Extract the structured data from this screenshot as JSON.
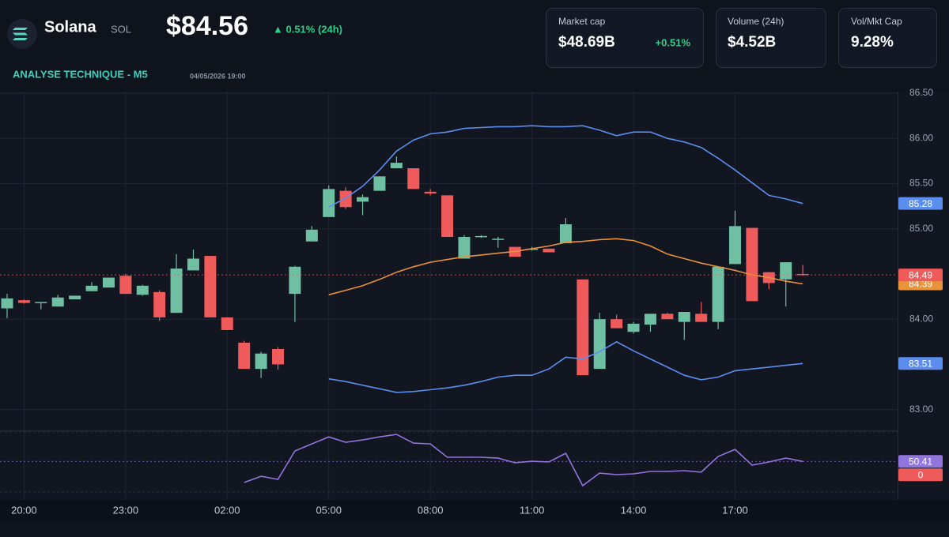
{
  "header": {
    "name": "Solana",
    "symbol": "SOL",
    "price": "$84.56",
    "change": "▲ 0.51% (24h)"
  },
  "cards": [
    {
      "label": "Market cap",
      "value": "$48.69B",
      "change": "+0.51%"
    },
    {
      "label": "Volume (24h)",
      "value": "$4.52B"
    },
    {
      "label": "Vol/Mkt Cap",
      "value": "9.28%"
    }
  ],
  "section": {
    "title": "ANALYSE TECHNIQUE - M5",
    "timestamp": "04/05/2026 19:00"
  },
  "chart_data": {
    "type": "candlestick",
    "up_color": "#6fbfa2",
    "down_color": "#ef5a5a",
    "xlim": [
      -0.42,
      52.6
    ],
    "xticks": [
      {
        "value": 1,
        "label": "20:00"
      },
      {
        "value": 7,
        "label": "23:00"
      },
      {
        "value": 13,
        "label": "02:00"
      },
      {
        "value": 19,
        "label": "05:00"
      },
      {
        "value": 25,
        "label": "08:00"
      },
      {
        "value": 31,
        "label": "11:00"
      },
      {
        "value": 37,
        "label": "14:00"
      },
      {
        "value": 43,
        "label": "17:00"
      }
    ],
    "ylim": [
      82.77,
      86.5
    ],
    "yticks": [
      {
        "value": 83,
        "label": "83.00"
      },
      {
        "value": 84,
        "label": "84.00"
      },
      {
        "value": 85,
        "label": "85.00"
      },
      {
        "value": 85.5,
        "label": "85.50"
      },
      {
        "value": 86,
        "label": "86.00"
      },
      {
        "value": 86.5,
        "label": "86.50"
      }
    ],
    "grid": true,
    "candles": [
      {
        "open": 84.12,
        "high": 84.28,
        "low": 84.01,
        "close": 84.23
      },
      {
        "open": 84.21,
        "high": 84.22,
        "low": 84.17,
        "close": 84.18
      },
      {
        "open": 84.18,
        "high": 84.19,
        "low": 84.11,
        "close": 84.19
      },
      {
        "open": 84.14,
        "high": 84.27,
        "low": 84.14,
        "close": 84.24
      },
      {
        "open": 84.22,
        "high": 84.26,
        "low": 84.22,
        "close": 84.26
      },
      {
        "open": 84.31,
        "high": 84.41,
        "low": 84.31,
        "close": 84.37
      },
      {
        "open": 84.35,
        "high": 84.46,
        "low": 84.35,
        "close": 84.46
      },
      {
        "open": 84.48,
        "high": 84.5,
        "low": 84.28,
        "close": 84.28
      },
      {
        "open": 84.27,
        "high": 84.38,
        "low": 84.26,
        "close": 84.37
      },
      {
        "open": 84.3,
        "high": 84.32,
        "low": 83.98,
        "close": 84.02
      },
      {
        "open": 84.07,
        "high": 84.72,
        "low": 84.07,
        "close": 84.56
      },
      {
        "open": 84.54,
        "high": 84.77,
        "low": 84.54,
        "close": 84.67
      },
      {
        "open": 84.7,
        "high": 84.7,
        "low": 84.02,
        "close": 84.02
      },
      {
        "open": 84.02,
        "high": 84.02,
        "low": 83.88,
        "close": 83.88
      },
      {
        "open": 83.74,
        "high": 83.76,
        "low": 83.45,
        "close": 83.45
      },
      {
        "open": 83.45,
        "high": 83.64,
        "low": 83.35,
        "close": 83.62
      },
      {
        "open": 83.67,
        "high": 83.69,
        "low": 83.44,
        "close": 83.5
      },
      {
        "open": 84.28,
        "high": 84.59,
        "low": 83.97,
        "close": 84.58
      },
      {
        "open": 84.86,
        "high": 85.03,
        "low": 84.86,
        "close": 84.99
      },
      {
        "open": 85.13,
        "high": 85.48,
        "low": 85.13,
        "close": 85.44
      },
      {
        "open": 85.42,
        "high": 85.46,
        "low": 85.22,
        "close": 85.24
      },
      {
        "open": 85.3,
        "high": 85.38,
        "low": 85.15,
        "close": 85.35
      },
      {
        "open": 85.42,
        "high": 85.58,
        "low": 85.42,
        "close": 85.58
      },
      {
        "open": 85.67,
        "high": 85.8,
        "low": 85.67,
        "close": 85.73
      },
      {
        "open": 85.67,
        "high": 85.67,
        "low": 85.44,
        "close": 85.44
      },
      {
        "open": 85.41,
        "high": 85.44,
        "low": 85.37,
        "close": 85.39
      },
      {
        "open": 85.37,
        "high": 85.37,
        "low": 84.91,
        "close": 84.91
      },
      {
        "open": 84.67,
        "high": 84.93,
        "low": 84.67,
        "close": 84.91
      },
      {
        "open": 84.91,
        "high": 84.93,
        "low": 84.9,
        "close": 84.92
      },
      {
        "open": 84.89,
        "high": 84.91,
        "low": 84.79,
        "close": 84.89
      },
      {
        "open": 84.8,
        "high": 84.8,
        "low": 84.69,
        "close": 84.69
      },
      {
        "open": 84.77,
        "high": 84.8,
        "low": 84.76,
        "close": 84.78
      },
      {
        "open": 84.78,
        "high": 84.78,
        "low": 84.74,
        "close": 84.74
      },
      {
        "open": 84.84,
        "high": 85.12,
        "low": 84.84,
        "close": 85.05
      },
      {
        "open": 84.44,
        "high": 84.44,
        "low": 83.38,
        "close": 83.38
      },
      {
        "open": 83.45,
        "high": 84.07,
        "low": 83.45,
        "close": 84.0
      },
      {
        "open": 84.0,
        "high": 84.05,
        "low": 83.9,
        "close": 83.9
      },
      {
        "open": 83.86,
        "high": 83.97,
        "low": 83.84,
        "close": 83.95
      },
      {
        "open": 83.94,
        "high": 84.06,
        "low": 83.86,
        "close": 84.06
      },
      {
        "open": 84.06,
        "high": 84.07,
        "low": 84.0,
        "close": 84.0
      },
      {
        "open": 83.97,
        "high": 84.08,
        "low": 83.77,
        "close": 84.08
      },
      {
        "open": 84.06,
        "high": 84.19,
        "low": 83.97,
        "close": 83.97
      },
      {
        "open": 83.97,
        "high": 84.58,
        "low": 83.89,
        "close": 84.58
      },
      {
        "open": 84.61,
        "high": 85.2,
        "low": 84.61,
        "close": 85.03
      },
      {
        "open": 85.01,
        "high": 85.01,
        "low": 84.2,
        "close": 84.2
      },
      {
        "open": 84.52,
        "high": 84.52,
        "low": 84.33,
        "close": 84.4
      },
      {
        "open": 84.44,
        "high": 84.63,
        "low": 84.14,
        "close": 84.63
      },
      {
        "open": 84.5,
        "high": 84.6,
        "low": 84.48,
        "close": 84.49
      }
    ],
    "bands": [
      {
        "color": "#5b8def",
        "values": [
          null,
          null,
          null,
          null,
          null,
          null,
          null,
          null,
          null,
          null,
          null,
          null,
          null,
          null,
          null,
          null,
          null,
          null,
          null,
          85.24,
          85.34,
          85.47,
          85.65,
          85.86,
          85.98,
          86.05,
          86.07,
          86.11,
          86.12,
          86.13,
          86.13,
          86.14,
          86.13,
          86.13,
          86.14,
          86.09,
          86.03,
          86.07,
          86.07,
          86.0,
          85.96,
          85.9,
          85.78,
          85.65,
          85.51,
          85.37,
          85.33,
          85.28
        ],
        "badge_text": "#ffffff"
      },
      {
        "color": "#e8923a",
        "values": [
          null,
          null,
          null,
          null,
          null,
          null,
          null,
          null,
          null,
          null,
          null,
          null,
          null,
          null,
          null,
          null,
          null,
          null,
          null,
          84.27,
          84.32,
          84.37,
          84.44,
          84.52,
          84.58,
          84.63,
          84.66,
          84.69,
          84.71,
          84.73,
          84.75,
          84.78,
          84.81,
          84.85,
          84.86,
          84.88,
          84.89,
          84.87,
          84.81,
          84.72,
          84.67,
          84.62,
          84.58,
          84.54,
          84.49,
          84.46,
          84.42,
          84.39
        ],
        "badge_text": "#ffffff"
      },
      {
        "color": "#5b8def",
        "values": [
          null,
          null,
          null,
          null,
          null,
          null,
          null,
          null,
          null,
          null,
          null,
          null,
          null,
          null,
          null,
          null,
          null,
          null,
          null,
          83.34,
          83.31,
          83.27,
          83.23,
          83.19,
          83.2,
          83.22,
          83.24,
          83.27,
          83.31,
          83.36,
          83.38,
          83.38,
          83.45,
          83.58,
          83.56,
          83.64,
          83.75,
          83.65,
          83.56,
          83.47,
          83.38,
          83.33,
          83.36,
          83.43,
          83.45,
          83.47,
          83.49,
          83.51
        ],
        "badge_text": "#ffffff"
      }
    ],
    "rsi": {
      "color": "#9274dd",
      "ylim": [
        26.3,
        71.1
      ],
      "levels": [
        30,
        70
      ],
      "values": [
        null,
        null,
        null,
        null,
        null,
        null,
        null,
        null,
        null,
        null,
        null,
        null,
        null,
        null,
        36.3,
        40.5,
        38.4,
        57.4,
        62.1,
        66.8,
        63.2,
        64.7,
        66.8,
        68.4,
        62.6,
        62.1,
        53.2,
        53.2,
        53.2,
        52.6,
        49.5,
        50.5,
        50.0,
        55.8,
        34.2,
        42.6,
        41.6,
        42.1,
        43.7,
        43.7,
        44.2,
        43.2,
        53.7,
        58.4,
        47.9,
        50.0,
        52.6,
        50.41
      ],
      "extra_badge": 0,
      "extra_badge_color": "#ef5a5a"
    }
  }
}
